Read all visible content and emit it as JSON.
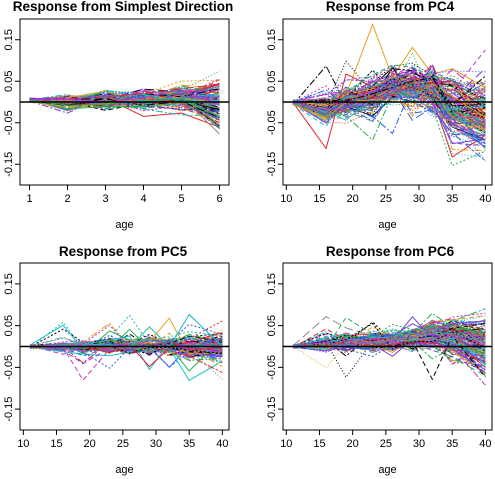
{
  "figure": {
    "palette": [
      "#000000",
      "#e8222b",
      "#22b14c",
      "#2e5de8",
      "#15c0c6",
      "#cc33cc",
      "#e6a11a",
      "#8a8a8a",
      "#7a3fe6"
    ],
    "n_curves_per_panel": 150
  },
  "chart_data": [
    {
      "type": "line",
      "title": "Response from Simplest Direction",
      "xlabel": "age",
      "ylabel": "",
      "x": [
        1,
        2,
        3,
        4,
        5,
        6
      ],
      "xticks": [
        "1",
        "2",
        "3",
        "4",
        "5",
        "6"
      ],
      "yticks": [
        "-0.15",
        "-0.05",
        "0.05",
        "0.15"
      ],
      "ytick_values": [
        -0.15,
        -0.05,
        0.05,
        0.15
      ],
      "xlim": [
        0.75,
        6.25
      ],
      "ylim": [
        -0.2,
        0.2
      ],
      "reference_line_y": 0,
      "series_mean": [
        0.005,
        0.0,
        0.005,
        0.005,
        0.01,
        0.0
      ],
      "series_spread": [
        0.003,
        0.012,
        0.015,
        0.018,
        0.022,
        0.035
      ],
      "series_tilt": [
        0.0,
        0.002,
        0.004,
        0.005,
        0.008,
        0.02
      ],
      "series_excursion": 0.006
    },
    {
      "type": "line",
      "title": "Response from PC4",
      "xlabel": "age",
      "ylabel": "",
      "x": [
        11,
        16,
        19,
        23,
        26,
        29,
        32,
        35,
        40
      ],
      "xticks": [
        "10",
        "15",
        "20",
        "25",
        "30",
        "35",
        "40"
      ],
      "xtick_values": [
        10,
        15,
        20,
        25,
        30,
        35,
        40
      ],
      "yticks": [
        "-0.15",
        "-0.05",
        "0.05",
        "0.15"
      ],
      "ytick_values": [
        -0.15,
        -0.05,
        0.05,
        0.15
      ],
      "xlim": [
        9.5,
        41
      ],
      "ylim": [
        -0.2,
        0.2
      ],
      "reference_line_y": 0,
      "series_mean": [
        0.0,
        -0.015,
        0.0,
        0.015,
        0.04,
        0.035,
        0.03,
        -0.01,
        -0.03
      ],
      "series_spread": [
        0.004,
        0.02,
        0.025,
        0.03,
        0.03,
        0.035,
        0.035,
        0.05,
        0.05
      ],
      "series_tilt": [
        0.0,
        0.01,
        0.01,
        0.01,
        0.012,
        0.015,
        0.015,
        0.03,
        0.035
      ],
      "series_excursion": 0.02
    },
    {
      "type": "line",
      "title": "Response from PC5",
      "xlabel": "age",
      "ylabel": "",
      "x": [
        11,
        16,
        19,
        23,
        26,
        29,
        32,
        35,
        40
      ],
      "xticks": [
        "10",
        "15",
        "20",
        "25",
        "30",
        "35",
        "40"
      ],
      "xtick_values": [
        10,
        15,
        20,
        25,
        30,
        35,
        40
      ],
      "yticks": [
        "-0.15",
        "-0.05",
        "0.05",
        "0.15"
      ],
      "ytick_values": [
        -0.15,
        -0.05,
        0.05,
        0.15
      ],
      "xlim": [
        9.5,
        41
      ],
      "ylim": [
        -0.2,
        0.2
      ],
      "reference_line_y": 0,
      "series_mean": [
        0.0,
        0.0,
        0.0,
        0.0,
        0.0,
        0.0,
        0.0,
        -0.005,
        0.0
      ],
      "series_spread": [
        0.003,
        0.006,
        0.01,
        0.012,
        0.012,
        0.012,
        0.012,
        0.018,
        0.02
      ],
      "series_tilt": [
        0.0,
        0.002,
        0.003,
        0.004,
        0.004,
        0.004,
        0.004,
        0.008,
        0.01
      ],
      "series_excursion": 0.012
    },
    {
      "type": "line",
      "title": "Response from PC6",
      "xlabel": "age",
      "ylabel": "",
      "x": [
        11,
        16,
        19,
        23,
        26,
        29,
        32,
        35,
        40
      ],
      "xticks": [
        "10",
        "15",
        "20",
        "25",
        "30",
        "35",
        "40"
      ],
      "xtick_values": [
        10,
        15,
        20,
        25,
        30,
        35,
        40
      ],
      "yticks": [
        "-0.15",
        "-0.05",
        "0.05",
        "0.15"
      ],
      "ytick_values": [
        -0.15,
        -0.05,
        0.05,
        0.15
      ],
      "xlim": [
        9.5,
        41
      ],
      "ylim": [
        -0.2,
        0.2
      ],
      "reference_line_y": 0,
      "series_mean": [
        0.0,
        0.005,
        0.01,
        0.012,
        0.015,
        0.02,
        0.025,
        0.025,
        0.0
      ],
      "series_spread": [
        0.003,
        0.01,
        0.012,
        0.014,
        0.015,
        0.016,
        0.018,
        0.022,
        0.03
      ],
      "series_tilt": [
        0.0,
        0.004,
        0.005,
        0.006,
        0.007,
        0.008,
        0.01,
        0.015,
        0.03
      ],
      "series_excursion": 0.012
    }
  ]
}
